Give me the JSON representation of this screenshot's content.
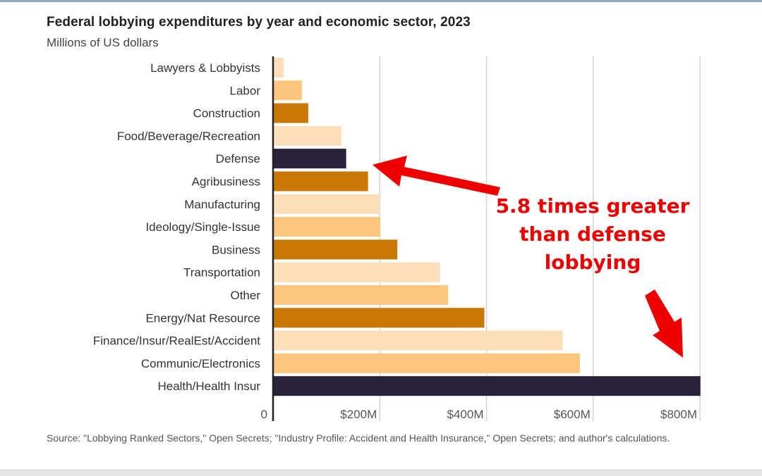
{
  "chart_data": {
    "type": "bar",
    "orientation": "horizontal",
    "title": "Federal lobbying expenditures by year and economic sector, 2023",
    "subtitle": "Millions of US dollars",
    "xlabel": "",
    "ylabel": "",
    "xlim": [
      0,
      800
    ],
    "grid": true,
    "x_ticks": [
      {
        "value": 0,
        "label": "0"
      },
      {
        "value": 200,
        "label": "$200M"
      },
      {
        "value": 400,
        "label": "$400M"
      },
      {
        "value": 600,
        "label": "$600M"
      },
      {
        "value": 800,
        "label": "$800M"
      }
    ],
    "categories": [
      "Lawyers & Lobbyists",
      "Labor",
      "Construction",
      "Food/Beverage/Recreation",
      "Defense",
      "Agribusiness",
      "Manufacturing",
      "Ideology/Single-Issue",
      "Business",
      "Transportation",
      "Other",
      "Energy/Nat Resource",
      "Finance/Insur/RealEst/Accident",
      "Communic/Electronics",
      "Health/Health Insur"
    ],
    "values": [
      20,
      54,
      66,
      128,
      137,
      178,
      200,
      201,
      233,
      313,
      328,
      396,
      543,
      575,
      801
    ],
    "colors": [
      "#fbdfb8",
      "#fdc67e",
      "#c97806",
      "#fbdfb8",
      "#28233a",
      "#c97806",
      "#fbdfb8",
      "#fdc67e",
      "#c97806",
      "#fbdfb8",
      "#fdc67e",
      "#c97806",
      "#fbdfb8",
      "#fdc67e",
      "#28233a"
    ],
    "annotation": {
      "lines": [
        "5.8 times greater",
        "than defense",
        "lobbying"
      ],
      "color": "#ee0000"
    },
    "source": "Source: \"Lobbying Ranked Sectors,\" Open Secrets; \"Industry Profile: Accident and Health Insurance,\" Open Secrets; and author's calculations."
  }
}
